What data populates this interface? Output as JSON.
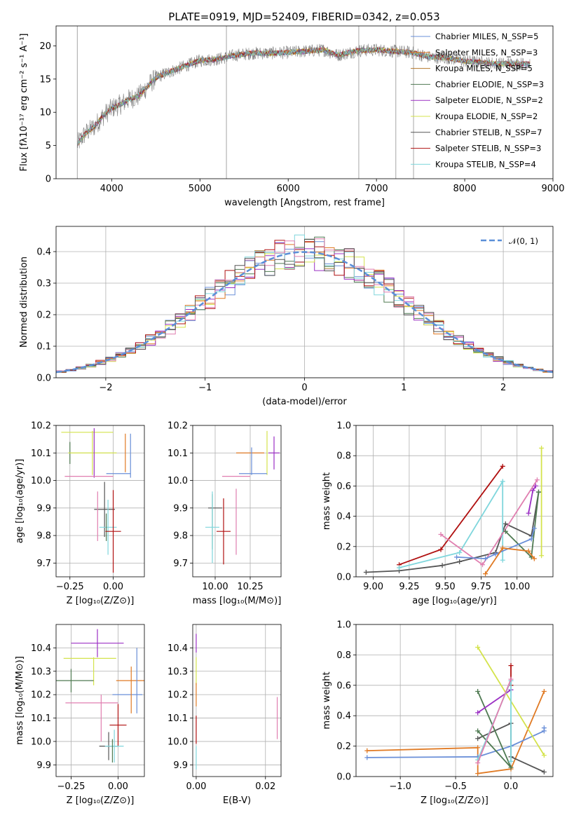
{
  "title": "PLATE=0919, MJD=52409, FIBERID=0342, z=0.053",
  "colors": {
    "blue": "#6a8fd8",
    "orange": "#e07a24",
    "brown": "#b5772c",
    "darkgreen": "#4f7a52",
    "purple": "#9b30c4",
    "lime": "#d4e34c",
    "gray": "#555555",
    "red": "#b01010",
    "cyan": "#7fd6dc",
    "pink": "#e07fb0",
    "specgray": "#808080"
  },
  "chart_data": [
    {
      "id": "spectrum",
      "type": "line",
      "xlabel": "wavelength [Angstrom, rest frame]",
      "ylabel": "Flux [fλ10⁻¹⁷ erg cm⁻² s⁻¹ A⁻¹]",
      "xlim": [
        3370,
        9000
      ],
      "ylim": [
        0,
        23
      ],
      "xticks": [
        4000,
        5000,
        6000,
        7000,
        8000,
        9000
      ],
      "yticks": [
        0,
        5,
        10,
        15,
        20
      ],
      "continuum": [
        [
          3610,
          5.2
        ],
        [
          3700,
          6.8
        ],
        [
          3800,
          7.8
        ],
        [
          3900,
          9.4
        ],
        [
          4000,
          10.6
        ],
        [
          4100,
          11.2
        ],
        [
          4200,
          12.0
        ],
        [
          4300,
          12.4
        ],
        [
          4400,
          13.8
        ],
        [
          4500,
          15.2
        ],
        [
          4600,
          15.8
        ],
        [
          4800,
          16.8
        ],
        [
          5000,
          17.8
        ],
        [
          5200,
          18.0
        ],
        [
          5400,
          18.6
        ],
        [
          5600,
          18.9
        ],
        [
          5800,
          18.9
        ],
        [
          6000,
          19.0
        ],
        [
          6200,
          19.2
        ],
        [
          6400,
          19.4
        ],
        [
          6562,
          18.6
        ],
        [
          6800,
          19.3
        ],
        [
          7000,
          19.4
        ],
        [
          7200,
          19.2
        ],
        [
          7400,
          19.0
        ],
        [
          7600,
          18.3
        ],
        [
          7800,
          18.2
        ],
        [
          8000,
          17.7
        ],
        [
          8200,
          17.5
        ],
        [
          8400,
          17.3
        ],
        [
          8600,
          17.3
        ],
        [
          8740,
          17.3
        ]
      ],
      "legend": [
        "Chabrier MILES, N_SSP=5",
        "Salpeter MILES, N_SSP=3",
        "Kroupa MILES, N_SSP=5",
        "Chabrier ELODIE, N_SSP=3",
        "Salpeter ELODIE, N_SSP=2",
        "Kroupa ELODIE, N_SSP=2",
        "Chabrier STELIB, N_SSP=7",
        "Salpeter STELIB, N_SSP=3",
        "Kroupa STELIB, N_SSP=4"
      ],
      "legend_colors": [
        "#6a8fd8",
        "#e07a24",
        "#b5772c",
        "#4f7a52",
        "#9b30c4",
        "#d4e34c",
        "#555555",
        "#b01010",
        "#7fd6dc"
      ]
    },
    {
      "id": "residuals",
      "type": "line",
      "xlabel": "(data-model)/error",
      "ylabel": "Normed distribution",
      "xlim": [
        -2.5,
        2.5
      ],
      "ylim": [
        0,
        0.48
      ],
      "xticks": [
        -2,
        -1,
        0,
        1,
        2
      ],
      "yticks": [
        0.0,
        0.1,
        0.2,
        0.3,
        0.4
      ],
      "legend": [
        "𝒩(0, 1)"
      ],
      "bin_width": 0.1,
      "series_colors": [
        "#6a8fd8",
        "#e07a24",
        "#4f7a52",
        "#9b30c4",
        "#d4e34c",
        "#b01010",
        "#7fd6dc",
        "#e07fb0",
        "#555555"
      ]
    },
    {
      "id": "age-vs-z",
      "type": "scatter",
      "xlabel": "Z [log₁₀(Z/Z⊙)]",
      "ylabel": "age  [log₁₀(age/yr)]",
      "xlim": [
        -0.33,
        0.18
      ],
      "ylim": [
        9.65,
        10.2
      ],
      "xticks": [
        -0.25,
        0.0
      ],
      "xtick_labels": [
        "−0.25",
        "0.00"
      ],
      "yticks": [
        9.7,
        9.8,
        9.9,
        10.0,
        10.1,
        10.2
      ],
      "points": [
        {
          "x": -0.15,
          "y": 10.175,
          "xe": 0.15,
          "ye": 0.0,
          "c": "#d4e34c"
        },
        {
          "x": -0.25,
          "y": 10.1,
          "xe": 0.0,
          "ye": 0.04,
          "c": "#4f7a52"
        },
        {
          "x": -0.12,
          "y": 10.1,
          "xe": 0.14,
          "ye": 0.08,
          "c": "#d4e34c"
        },
        {
          "x": -0.11,
          "y": 10.1,
          "xe": 0.0,
          "ye": 0.09,
          "c": "#9b30c4"
        },
        {
          "x": 0.1,
          "y": 10.09,
          "xe": 0.0,
          "ye": 0.08,
          "c": "#6a8fd8"
        },
        {
          "x": 0.07,
          "y": 10.1,
          "xe": 0.0,
          "ye": 0.07,
          "c": "#e07a24"
        },
        {
          "x": 0.03,
          "y": 10.025,
          "xe": 0.07,
          "ye": 0.0,
          "c": "#6a8fd8"
        },
        {
          "x": -0.14,
          "y": 10.015,
          "xe": 0.14,
          "ye": 0.0,
          "c": "#e07fb0"
        },
        {
          "x": -0.05,
          "y": 9.895,
          "xe": 0.06,
          "ye": 0.1,
          "c": "#555555"
        },
        {
          "x": -0.03,
          "y": 9.83,
          "xe": 0.05,
          "ye": 0.1,
          "c": "#7fd6dc"
        },
        {
          "x": -0.09,
          "y": 9.87,
          "xe": 0.0,
          "ye": 0.09,
          "c": "#e07fb0"
        },
        {
          "x": -0.04,
          "y": 9.83,
          "xe": 0.0,
          "ye": 0.05,
          "c": "#4f7a52"
        },
        {
          "x": 0.0,
          "y": 9.815,
          "xe": 0.045,
          "ye": 0.15,
          "c": "#b01010"
        }
      ]
    },
    {
      "id": "age-vs-mass",
      "type": "scatter",
      "xlabel": "mass [log₁₀(M/M⊙)]",
      "ylabel": "",
      "xlim": [
        9.84,
        10.47
      ],
      "ylim": [
        9.65,
        10.2
      ],
      "xticks": [
        10.0,
        10.25
      ],
      "xtick_labels": [
        "10.00",
        "10.25"
      ],
      "yticks": [
        9.7,
        9.8,
        9.9,
        10.0,
        10.1,
        10.2
      ],
      "points": [
        {
          "x": 10.37,
          "y": 10.1,
          "xe": 0.0,
          "ye": 0.08,
          "c": "#d4e34c"
        },
        {
          "x": 10.42,
          "y": 10.1,
          "xe": 0.04,
          "ye": 0.06,
          "c": "#9b30c4"
        },
        {
          "x": 10.25,
          "y": 10.1,
          "xe": 0.1,
          "ye": 0.0,
          "c": "#e07a24"
        },
        {
          "x": 10.26,
          "y": 10.07,
          "xe": 0.0,
          "ye": 0.05,
          "c": "#6a8fd8"
        },
        {
          "x": 10.27,
          "y": 10.025,
          "xe": 0.1,
          "ye": 0.0,
          "c": "#6a8fd8"
        },
        {
          "x": 10.15,
          "y": 10.015,
          "xe": 0.1,
          "ye": 0.0,
          "c": "#e07fb0"
        },
        {
          "x": 10.0,
          "y": 9.9,
          "xe": 0.05,
          "ye": 0.0,
          "c": "#555555"
        },
        {
          "x": 9.98,
          "y": 9.85,
          "xe": 0.0,
          "ye": 0.1,
          "c": "#4f7a52"
        },
        {
          "x": 9.98,
          "y": 9.83,
          "xe": 0.05,
          "ye": 0.13,
          "c": "#7fd6dc"
        },
        {
          "x": 10.06,
          "y": 9.815,
          "xe": 0.05,
          "ye": 0.12,
          "c": "#b01010"
        },
        {
          "x": 10.15,
          "y": 9.85,
          "xe": 0.0,
          "ye": 0.12,
          "c": "#e07fb0"
        }
      ]
    },
    {
      "id": "weight-vs-age",
      "type": "line",
      "xlabel": "age  [log₁₀(age/yr)]",
      "ylabel": "mass weight",
      "xlim": [
        8.88,
        10.25
      ],
      "ylim": [
        0,
        1.0
      ],
      "xticks": [
        9.0,
        9.25,
        9.5,
        9.75,
        10.0
      ],
      "xtick_labels": [
        "9.00",
        "9.25",
        "9.50",
        "9.75",
        "10.00"
      ],
      "yticks": [
        0.0,
        0.2,
        0.4,
        0.6,
        0.8,
        1.0
      ],
      "series": [
        {
          "c": "#555555",
          "pts": [
            [
              8.95,
              0.03
            ],
            [
              9.18,
              0.04
            ],
            [
              9.48,
              0.075
            ],
            [
              9.6,
              0.1
            ],
            [
              9.85,
              0.16
            ],
            [
              9.92,
              0.35
            ],
            [
              10.1,
              0.27
            ],
            [
              10.15,
              0.56
            ]
          ]
        },
        {
          "c": "#b01010",
          "pts": [
            [
              9.18,
              0.08
            ],
            [
              9.47,
              0.18
            ],
            [
              9.9,
              0.73
            ]
          ]
        },
        {
          "c": "#7fd6dc",
          "pts": [
            [
              9.18,
              0.06
            ],
            [
              9.6,
              0.16
            ],
            [
              9.9,
              0.63
            ],
            [
              9.9,
              0.11
            ]
          ]
        },
        {
          "c": "#e07fb0",
          "pts": [
            [
              9.47,
              0.28
            ],
            [
              9.76,
              0.08
            ],
            [
              10.14,
              0.64
            ]
          ]
        },
        {
          "c": "#9b30c4",
          "pts": [
            [
              10.08,
              0.42
            ],
            [
              10.11,
              0.57
            ],
            [
              10.13,
              0.6
            ]
          ]
        },
        {
          "c": "#d4e34c",
          "pts": [
            [
              10.17,
              0.85
            ],
            [
              10.17,
              0.14
            ]
          ]
        },
        {
          "c": "#4f7a52",
          "pts": [
            [
              9.92,
              0.3
            ],
            [
              10.1,
              0.13
            ],
            [
              10.15,
              0.56
            ]
          ]
        },
        {
          "c": "#6a8fd8",
          "pts": [
            [
              9.58,
              0.13
            ],
            [
              9.78,
              0.12
            ],
            [
              9.85,
              0.15
            ],
            [
              10.1,
              0.25
            ],
            [
              10.12,
              0.32
            ]
          ]
        },
        {
          "c": "#e07a24",
          "pts": [
            [
              9.78,
              0.02
            ],
            [
              9.9,
              0.19
            ],
            [
              10.08,
              0.17
            ],
            [
              10.12,
              0.12
            ]
          ]
        }
      ]
    },
    {
      "id": "mass-vs-z",
      "type": "scatter",
      "xlabel": "Z [log₁₀(Z/Z⊙)]",
      "ylabel": "mass [log₁₀(M/M⊙)]",
      "xlim": [
        -0.33,
        0.14
      ],
      "ylim": [
        9.85,
        10.5
      ],
      "xticks": [
        -0.25,
        0.0
      ],
      "xtick_labels": [
        "−0.25",
        "0.00"
      ],
      "yticks": [
        9.9,
        10.0,
        10.1,
        10.2,
        10.3,
        10.4
      ],
      "points": [
        {
          "x": -0.11,
          "y": 10.42,
          "xe": 0.14,
          "ye": 0.06,
          "c": "#9b30c4"
        },
        {
          "x": -0.15,
          "y": 10.355,
          "xe": 0.14,
          "ye": 0.0,
          "c": "#d4e34c"
        },
        {
          "x": -0.13,
          "y": 10.3,
          "xe": 0.0,
          "ye": 0.06,
          "c": "#d4e34c"
        },
        {
          "x": -0.25,
          "y": 10.26,
          "xe": 0.12,
          "ye": 0.05,
          "c": "#4f7a52"
        },
        {
          "x": 0.07,
          "y": 10.26,
          "xe": 0.08,
          "ye": 0.0,
          "c": "#e07a24"
        },
        {
          "x": 0.1,
          "y": 10.26,
          "xe": 0.0,
          "ye": 0.14,
          "c": "#6a8fd8"
        },
        {
          "x": 0.05,
          "y": 10.2,
          "xe": 0.08,
          "ye": 0.0,
          "c": "#6a8fd8"
        },
        {
          "x": 0.07,
          "y": 10.22,
          "xe": 0.0,
          "ye": 0.1,
          "c": "#e07a24"
        },
        {
          "x": -0.14,
          "y": 10.165,
          "xe": 0.14,
          "ye": 0.0,
          "c": "#e07fb0"
        },
        {
          "x": -0.09,
          "y": 10.1,
          "xe": 0.0,
          "ye": 0.1,
          "c": "#e07fb0"
        },
        {
          "x": 0.0,
          "y": 10.07,
          "xe": 0.045,
          "ye": 0.09,
          "c": "#b01010"
        },
        {
          "x": -0.05,
          "y": 9.98,
          "xe": 0.05,
          "ye": 0.06,
          "c": "#555555"
        },
        {
          "x": -0.02,
          "y": 9.98,
          "xe": 0.05,
          "ye": 0.07,
          "c": "#7fd6dc"
        },
        {
          "x": -0.03,
          "y": 9.96,
          "xe": 0.0,
          "ye": 0.05,
          "c": "#4f7a52"
        }
      ]
    },
    {
      "id": "mass-vs-ebv",
      "type": "scatter",
      "xlabel": "E(B-V)",
      "ylabel": "",
      "xlim": [
        -0.001,
        0.0245
      ],
      "ylim": [
        9.85,
        10.5
      ],
      "xticks": [
        0.0,
        0.02
      ],
      "xtick_labels": [
        "0.00",
        "0.02"
      ],
      "yticks": [
        9.9,
        10.0,
        10.1,
        10.2,
        10.3,
        10.4
      ],
      "points": [
        {
          "x": 0.0,
          "y": 10.42,
          "xe": 0.0,
          "ye": 0.04,
          "c": "#9b30c4"
        },
        {
          "x": 0.0,
          "y": 10.3,
          "xe": 0.0,
          "ye": 0.06,
          "c": "#d4e34c"
        },
        {
          "x": 0.0,
          "y": 10.2,
          "xe": 0.0,
          "ye": 0.05,
          "c": "#e07a24"
        },
        {
          "x": 0.0,
          "y": 10.05,
          "xe": 0.0,
          "ye": 0.06,
          "c": "#b01010"
        },
        {
          "x": 0.0,
          "y": 9.93,
          "xe": 0.0,
          "ye": 0.05,
          "c": "#7fd6dc"
        },
        {
          "x": 0.0234,
          "y": 10.1,
          "xe": 0.0,
          "ye": 0.09,
          "c": "#e07fb0"
        }
      ]
    },
    {
      "id": "weight-vs-z",
      "type": "line",
      "xlabel": "Z [log₁₀(Z/Z⊙)]",
      "ylabel": "mass weight",
      "xlim": [
        -1.4,
        0.38
      ],
      "ylim": [
        0,
        1.0
      ],
      "xticks": [
        -1.0,
        -0.5,
        0.0
      ],
      "xtick_labels": [
        "−1.0",
        "−0.5",
        "0.0"
      ],
      "yticks": [
        0.0,
        0.2,
        0.4,
        0.6,
        0.8,
        1.0
      ],
      "series": [
        {
          "c": "#e07a24",
          "pts": [
            [
              -1.3,
              0.17
            ],
            [
              -0.3,
              0.19
            ],
            [
              -0.3,
              0.02
            ],
            [
              0.0,
              0.05
            ],
            [
              0.3,
              0.56
            ]
          ]
        },
        {
          "c": "#6a8fd8",
          "pts": [
            [
              -1.3,
              0.125
            ],
            [
              -0.3,
              0.13
            ],
            [
              0.0,
              0.2
            ],
            [
              0.3,
              0.3
            ],
            [
              0.3,
              0.32
            ]
          ]
        },
        {
          "c": "#d4e34c",
          "pts": [
            [
              -0.3,
              0.85
            ],
            [
              0.3,
              0.14
            ]
          ]
        },
        {
          "c": "#555555",
          "pts": [
            [
              -0.3,
              0.25
            ],
            [
              0.0,
              0.35
            ],
            [
              0.0,
              0.13
            ],
            [
              0.3,
              0.03
            ]
          ]
        },
        {
          "c": "#4f7a52",
          "pts": [
            [
              -0.3,
              0.56
            ],
            [
              0.0,
              0.06
            ],
            [
              -0.3,
              0.3
            ]
          ]
        },
        {
          "c": "#9b30c4",
          "pts": [
            [
              -0.3,
              0.42
            ],
            [
              0.0,
              0.57
            ]
          ]
        },
        {
          "c": "#b01010",
          "pts": [
            [
              0.0,
              0.73
            ],
            [
              0.0,
              0.6
            ]
          ]
        },
        {
          "c": "#7fd6dc",
          "pts": [
            [
              -0.3,
              0.11
            ],
            [
              0.0,
              0.63
            ],
            [
              0.0,
              0.1
            ]
          ]
        },
        {
          "c": "#e07fb0",
          "pts": [
            [
              -0.3,
              0.09
            ],
            [
              0.0,
              0.64
            ]
          ]
        }
      ]
    }
  ]
}
